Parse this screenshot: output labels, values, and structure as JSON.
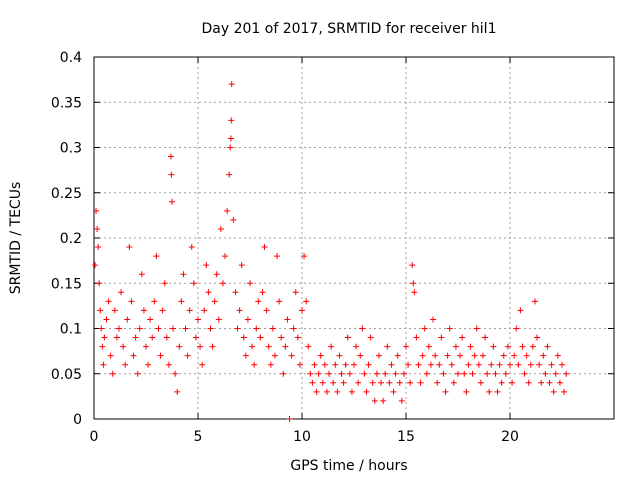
{
  "chart_data": {
    "type": "scatter",
    "title": "Day 201 of 2017, SRMTID for receiver hil1",
    "xlabel": "GPS time / hours",
    "ylabel": "SRMTID / TECUs",
    "xlim": [
      0,
      25
    ],
    "ylim": [
      0,
      0.4
    ],
    "xticks": [
      0,
      5,
      10,
      15,
      20
    ],
    "xtick_labels": [
      "0",
      "5",
      "10",
      "15",
      "20"
    ],
    "yticks": [
      0,
      0.05,
      0.1,
      0.15,
      0.2,
      0.25,
      0.3,
      0.35,
      0.4
    ],
    "ytick_labels": [
      "0",
      "0.05",
      "0.1",
      "0.15",
      "0.2",
      "0.25",
      "0.3",
      "0.35",
      "0.4"
    ],
    "grid": true,
    "marker": "plus",
    "color": "#ff0000",
    "series": [
      {
        "name": "SRMTID",
        "points": [
          [
            0.05,
            0.17
          ],
          [
            0.1,
            0.23
          ],
          [
            0.15,
            0.21
          ],
          [
            0.2,
            0.19
          ],
          [
            0.25,
            0.15
          ],
          [
            0.3,
            0.12
          ],
          [
            0.35,
            0.1
          ],
          [
            0.4,
            0.08
          ],
          [
            0.45,
            0.06
          ],
          [
            0.5,
            0.09
          ],
          [
            0.6,
            0.11
          ],
          [
            0.7,
            0.13
          ],
          [
            0.8,
            0.07
          ],
          [
            0.9,
            0.05
          ],
          [
            1.0,
            0.12
          ],
          [
            1.1,
            0.09
          ],
          [
            1.2,
            0.1
          ],
          [
            1.3,
            0.14
          ],
          [
            1.4,
            0.08
          ],
          [
            1.5,
            0.06
          ],
          [
            1.6,
            0.11
          ],
          [
            1.7,
            0.19
          ],
          [
            1.8,
            0.13
          ],
          [
            1.9,
            0.07
          ],
          [
            2.0,
            0.09
          ],
          [
            2.1,
            0.05
          ],
          [
            2.2,
            0.1
          ],
          [
            2.3,
            0.16
          ],
          [
            2.4,
            0.12
          ],
          [
            2.5,
            0.08
          ],
          [
            2.6,
            0.06
          ],
          [
            2.7,
            0.11
          ],
          [
            2.8,
            0.09
          ],
          [
            2.9,
            0.13
          ],
          [
            3.0,
            0.18
          ],
          [
            3.1,
            0.1
          ],
          [
            3.2,
            0.07
          ],
          [
            3.3,
            0.12
          ],
          [
            3.4,
            0.15
          ],
          [
            3.5,
            0.09
          ],
          [
            3.6,
            0.06
          ],
          [
            3.7,
            0.29
          ],
          [
            3.72,
            0.27
          ],
          [
            3.75,
            0.24
          ],
          [
            3.8,
            0.1
          ],
          [
            3.9,
            0.05
          ],
          [
            4.0,
            0.03
          ],
          [
            4.1,
            0.08
          ],
          [
            4.2,
            0.13
          ],
          [
            4.3,
            0.16
          ],
          [
            4.4,
            0.1
          ],
          [
            4.5,
            0.07
          ],
          [
            4.6,
            0.12
          ],
          [
            4.7,
            0.19
          ],
          [
            4.8,
            0.15
          ],
          [
            4.9,
            0.09
          ],
          [
            5.0,
            0.11
          ],
          [
            5.1,
            0.08
          ],
          [
            5.2,
            0.06
          ],
          [
            5.3,
            0.12
          ],
          [
            5.4,
            0.17
          ],
          [
            5.5,
            0.14
          ],
          [
            5.6,
            0.1
          ],
          [
            5.7,
            0.08
          ],
          [
            5.8,
            0.13
          ],
          [
            5.9,
            0.16
          ],
          [
            6.0,
            0.11
          ],
          [
            6.1,
            0.21
          ],
          [
            6.2,
            0.15
          ],
          [
            6.3,
            0.18
          ],
          [
            6.4,
            0.23
          ],
          [
            6.5,
            0.27
          ],
          [
            6.55,
            0.3
          ],
          [
            6.58,
            0.31
          ],
          [
            6.6,
            0.33
          ],
          [
            6.62,
            0.37
          ],
          [
            6.7,
            0.22
          ],
          [
            6.8,
            0.14
          ],
          [
            6.9,
            0.1
          ],
          [
            7.0,
            0.12
          ],
          [
            7.1,
            0.17
          ],
          [
            7.2,
            0.09
          ],
          [
            7.3,
            0.07
          ],
          [
            7.4,
            0.11
          ],
          [
            7.5,
            0.15
          ],
          [
            7.6,
            0.08
          ],
          [
            7.7,
            0.06
          ],
          [
            7.8,
            0.1
          ],
          [
            7.9,
            0.13
          ],
          [
            8.0,
            0.09
          ],
          [
            8.1,
            0.14
          ],
          [
            8.2,
            0.19
          ],
          [
            8.3,
            0.12
          ],
          [
            8.4,
            0.08
          ],
          [
            8.5,
            0.06
          ],
          [
            8.6,
            0.1
          ],
          [
            8.7,
            0.07
          ],
          [
            8.8,
            0.18
          ],
          [
            8.9,
            0.13
          ],
          [
            9.0,
            0.09
          ],
          [
            9.1,
            0.05
          ],
          [
            9.2,
            0.08
          ],
          [
            9.3,
            0.11
          ],
          [
            9.4,
            0.0
          ],
          [
            9.5,
            0.07
          ],
          [
            9.6,
            0.1
          ],
          [
            9.7,
            0.14
          ],
          [
            9.8,
            0.09
          ],
          [
            9.9,
            0.06
          ],
          [
            10.0,
            0.12
          ],
          [
            10.1,
            0.18
          ],
          [
            10.2,
            0.13
          ],
          [
            10.3,
            0.08
          ],
          [
            10.4,
            0.05
          ],
          [
            10.5,
            0.04
          ],
          [
            10.6,
            0.06
          ],
          [
            10.7,
            0.03
          ],
          [
            10.8,
            0.05
          ],
          [
            10.9,
            0.07
          ],
          [
            11.0,
            0.04
          ],
          [
            11.1,
            0.06
          ],
          [
            11.2,
            0.03
          ],
          [
            11.3,
            0.05
          ],
          [
            11.4,
            0.08
          ],
          [
            11.5,
            0.04
          ],
          [
            11.6,
            0.06
          ],
          [
            11.7,
            0.03
          ],
          [
            11.8,
            0.07
          ],
          [
            11.9,
            0.05
          ],
          [
            12.0,
            0.04
          ],
          [
            12.1,
            0.06
          ],
          [
            12.2,
            0.09
          ],
          [
            12.3,
            0.05
          ],
          [
            12.4,
            0.03
          ],
          [
            12.5,
            0.06
          ],
          [
            12.6,
            0.08
          ],
          [
            12.7,
            0.04
          ],
          [
            12.8,
            0.07
          ],
          [
            12.9,
            0.1
          ],
          [
            13.0,
            0.05
          ],
          [
            13.1,
            0.03
          ],
          [
            13.2,
            0.06
          ],
          [
            13.3,
            0.09
          ],
          [
            13.4,
            0.04
          ],
          [
            13.5,
            0.02
          ],
          [
            13.6,
            0.05
          ],
          [
            13.7,
            0.07
          ],
          [
            13.8,
            0.04
          ],
          [
            13.9,
            0.02
          ],
          [
            14.0,
            0.05
          ],
          [
            14.1,
            0.08
          ],
          [
            14.2,
            0.04
          ],
          [
            14.3,
            0.06
          ],
          [
            14.4,
            0.03
          ],
          [
            14.5,
            0.05
          ],
          [
            14.6,
            0.07
          ],
          [
            14.7,
            0.04
          ],
          [
            14.8,
            0.02
          ],
          [
            14.9,
            0.05
          ],
          [
            15.0,
            0.08
          ],
          [
            15.1,
            0.06
          ],
          [
            15.2,
            0.04
          ],
          [
            15.3,
            0.17
          ],
          [
            15.35,
            0.15
          ],
          [
            15.4,
            0.14
          ],
          [
            15.5,
            0.09
          ],
          [
            15.6,
            0.06
          ],
          [
            15.7,
            0.04
          ],
          [
            15.8,
            0.07
          ],
          [
            15.9,
            0.1
          ],
          [
            16.0,
            0.05
          ],
          [
            16.1,
            0.08
          ],
          [
            16.2,
            0.06
          ],
          [
            16.3,
            0.11
          ],
          [
            16.4,
            0.07
          ],
          [
            16.5,
            0.04
          ],
          [
            16.6,
            0.06
          ],
          [
            16.7,
            0.09
          ],
          [
            16.8,
            0.05
          ],
          [
            16.9,
            0.03
          ],
          [
            17.0,
            0.07
          ],
          [
            17.1,
            0.1
          ],
          [
            17.2,
            0.06
          ],
          [
            17.3,
            0.04
          ],
          [
            17.4,
            0.08
          ],
          [
            17.5,
            0.05
          ],
          [
            17.6,
            0.07
          ],
          [
            17.7,
            0.09
          ],
          [
            17.8,
            0.05
          ],
          [
            17.9,
            0.03
          ],
          [
            18.0,
            0.06
          ],
          [
            18.1,
            0.08
          ],
          [
            18.2,
            0.05
          ],
          [
            18.3,
            0.07
          ],
          [
            18.4,
            0.1
          ],
          [
            18.5,
            0.06
          ],
          [
            18.6,
            0.04
          ],
          [
            18.7,
            0.07
          ],
          [
            18.8,
            0.09
          ],
          [
            18.9,
            0.05
          ],
          [
            19.0,
            0.03
          ],
          [
            19.1,
            0.06
          ],
          [
            19.2,
            0.08
          ],
          [
            19.3,
            0.05
          ],
          [
            19.4,
            0.03
          ],
          [
            19.5,
            0.06
          ],
          [
            19.6,
            0.04
          ],
          [
            19.7,
            0.07
          ],
          [
            19.8,
            0.05
          ],
          [
            19.9,
            0.08
          ],
          [
            20.0,
            0.06
          ],
          [
            20.1,
            0.04
          ],
          [
            20.2,
            0.07
          ],
          [
            20.3,
            0.1
          ],
          [
            20.4,
            0.06
          ],
          [
            20.5,
            0.12
          ],
          [
            20.6,
            0.08
          ],
          [
            20.7,
            0.05
          ],
          [
            20.8,
            0.07
          ],
          [
            20.9,
            0.04
          ],
          [
            21.0,
            0.06
          ],
          [
            21.1,
            0.08
          ],
          [
            21.2,
            0.13
          ],
          [
            21.3,
            0.09
          ],
          [
            21.4,
            0.06
          ],
          [
            21.5,
            0.04
          ],
          [
            21.6,
            0.07
          ],
          [
            21.7,
            0.05
          ],
          [
            21.8,
            0.08
          ],
          [
            21.9,
            0.04
          ],
          [
            22.0,
            0.06
          ],
          [
            22.1,
            0.03
          ],
          [
            22.2,
            0.05
          ],
          [
            22.3,
            0.07
          ],
          [
            22.4,
            0.04
          ],
          [
            22.5,
            0.06
          ],
          [
            22.6,
            0.03
          ],
          [
            22.7,
            0.05
          ]
        ]
      }
    ]
  }
}
